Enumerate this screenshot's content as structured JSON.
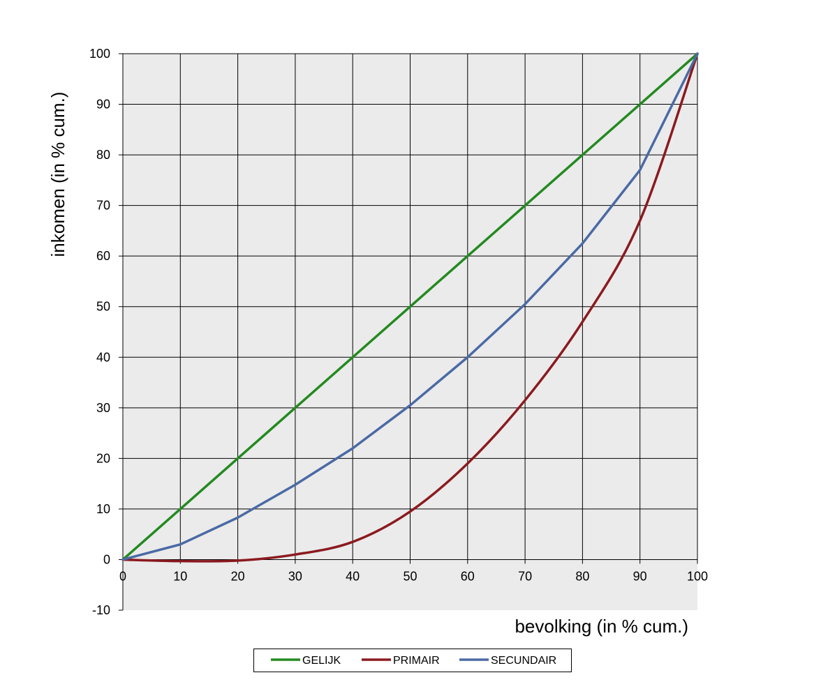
{
  "chart_data": {
    "type": "line",
    "title": "",
    "xlabel": "bevolking (in % cum.)",
    "ylabel": "inkomen (in % cum.)",
    "xlim": [
      0,
      100
    ],
    "ylim": [
      -10,
      100
    ],
    "x_ticks": [
      0,
      10,
      20,
      30,
      40,
      50,
      60,
      70,
      80,
      90,
      100
    ],
    "y_ticks": [
      -10,
      0,
      10,
      20,
      30,
      40,
      50,
      60,
      70,
      80,
      90,
      100
    ],
    "x_tick_labels": [
      "0",
      "10",
      "20",
      "30",
      "40",
      "50",
      "60",
      "70",
      "80",
      "90",
      "100"
    ],
    "y_tick_labels": [
      "-10",
      "0",
      "10",
      "20",
      "30",
      "40",
      "50",
      "60",
      "70",
      "80",
      "90",
      "100"
    ],
    "grid": true,
    "plot_background": "#ebebeb",
    "legend_position": "bottom",
    "x": [
      0,
      10,
      20,
      30,
      40,
      50,
      60,
      70,
      80,
      90,
      100
    ],
    "series": [
      {
        "name": "GELIJK",
        "color": "#238a1f",
        "smooth": false,
        "values": [
          0,
          10,
          20,
          30,
          40,
          50,
          60,
          70,
          80,
          90,
          100
        ]
      },
      {
        "name": "PRIMAIR",
        "color": "#8b1a1f",
        "smooth": true,
        "values": [
          0,
          -0.3,
          -0.2,
          1,
          3.5,
          9.5,
          19,
          31.5,
          47,
          67,
          100
        ]
      },
      {
        "name": "SECUNDAIR",
        "color": "#4a6aa5",
        "smooth": false,
        "values": [
          0,
          3,
          8.3,
          14.8,
          22,
          30.5,
          40,
          50.5,
          62.5,
          77,
          100
        ]
      }
    ]
  }
}
